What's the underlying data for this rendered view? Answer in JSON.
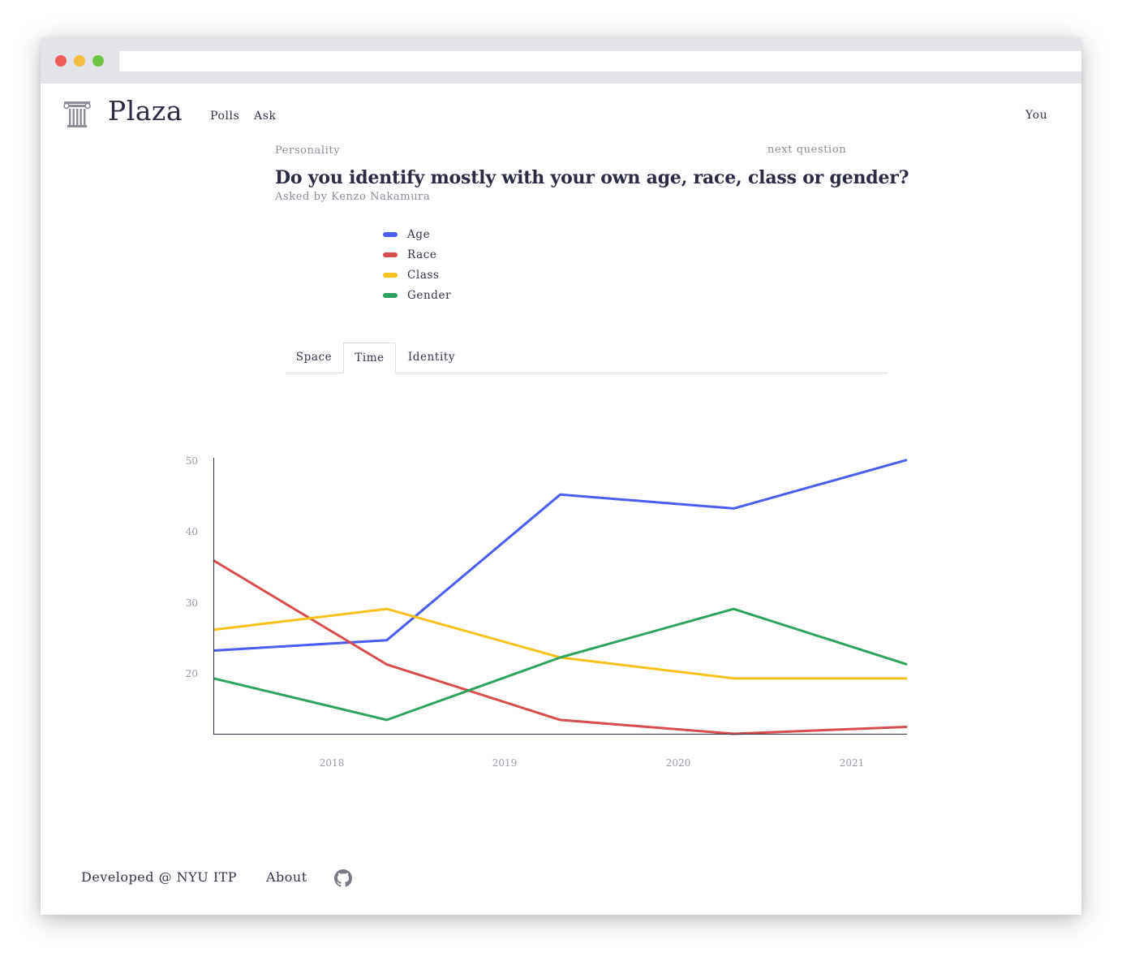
{
  "app": {
    "brand": "Plaza"
  },
  "nav": {
    "items": [
      "Polls",
      "Ask"
    ],
    "user": "You"
  },
  "question": {
    "category": "Personality",
    "next_label": "next question",
    "title": "Do you identify mostly with your own age, race, class or gender?",
    "asked_by": "Asked by Kenzo Nakamura"
  },
  "tabs": {
    "items": [
      "Space",
      "Time",
      "Identity"
    ],
    "active": "Time"
  },
  "icons": {
    "logo": "column-icon",
    "github": "github-icon"
  },
  "footer": {
    "developed": "Developed @ NYU ITP",
    "about": "About"
  },
  "chart_data": {
    "type": "line",
    "x": [
      2017.5,
      2018.5,
      2019.5,
      2020.5,
      2021.5
    ],
    "x_ticks": [
      "2018",
      "2019",
      "2020",
      "2021"
    ],
    "y_ticks": [
      "50",
      "40",
      "30",
      "20"
    ],
    "ylim": [
      10.5,
      50.3
    ],
    "legend": "top-left",
    "grid": false,
    "series": [
      {
        "name": "Age",
        "color": "#4b5cf0",
        "values": [
          22.5,
          24,
          45,
          43,
          50
        ]
      },
      {
        "name": "Race",
        "color": "#d84c4e",
        "values": [
          35.5,
          20.5,
          12.5,
          10.5,
          11.5
        ]
      },
      {
        "name": "Class",
        "color": "#f8c11a",
        "values": [
          25.5,
          28.5,
          21.5,
          18.5,
          18.5
        ]
      },
      {
        "name": "Gender",
        "color": "#2ea35f",
        "values": [
          18.5,
          12.5,
          21.5,
          28.5,
          20.5
        ]
      }
    ]
  }
}
